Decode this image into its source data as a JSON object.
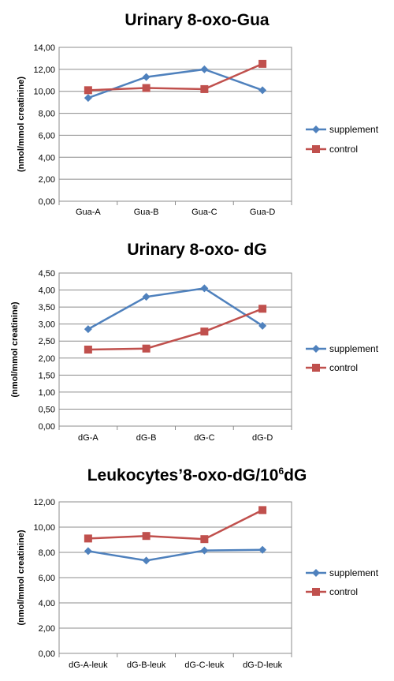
{
  "chart_data": [
    {
      "type": "line",
      "title": "Urinary 8-oxo-Gua",
      "ylabel": "(nmol/mmol creatinine)",
      "categories": [
        "Gua-A",
        "Gua-B",
        "Gua-C",
        "Gua-D"
      ],
      "ylim": [
        0,
        14
      ],
      "yticks": [
        "0,00",
        "2,00",
        "4,00",
        "6,00",
        "8,00",
        "10,00",
        "12,00",
        "14,00"
      ],
      "grid": true,
      "legend_position": "right",
      "series": [
        {
          "name": "supplement",
          "color": "#4f81bd",
          "marker": "diamond",
          "values": [
            9.4,
            11.3,
            12.0,
            10.1
          ]
        },
        {
          "name": "control",
          "color": "#c0504d",
          "marker": "square",
          "values": [
            10.1,
            10.3,
            10.2,
            12.5
          ]
        }
      ]
    },
    {
      "type": "line",
      "title": "Urinary 8-oxo- dG",
      "ylabel": "(nmol/mmol creatinine)",
      "categories": [
        "dG-A",
        "dG-B",
        "dG-C",
        "dG-D"
      ],
      "ylim": [
        0,
        4.5
      ],
      "yticks": [
        "0,00",
        "0,50",
        "1,00",
        "1,50",
        "2,00",
        "2,50",
        "3,00",
        "3,50",
        "4,00",
        "4,50"
      ],
      "grid": true,
      "legend_position": "right",
      "series": [
        {
          "name": "supplement",
          "color": "#4f81bd",
          "marker": "diamond",
          "values": [
            2.85,
            3.8,
            4.05,
            2.95
          ]
        },
        {
          "name": "control",
          "color": "#c0504d",
          "marker": "square",
          "values": [
            2.25,
            2.28,
            2.78,
            3.45
          ]
        }
      ]
    },
    {
      "type": "line",
      "title": "Leukocytes’8-oxo-dG/10",
      "title_sup": "6",
      "title_tail": "dG",
      "ylabel": "(nmol/mmol creatinine)",
      "categories": [
        "dG-A-leuk",
        "dG-B-leuk",
        "dG-C-leuk",
        "dG-D-leuk"
      ],
      "ylim": [
        0,
        12
      ],
      "yticks": [
        "0,00",
        "2,00",
        "4,00",
        "6,00",
        "8,00",
        "10,00",
        "12,00"
      ],
      "grid": true,
      "legend_position": "right",
      "series": [
        {
          "name": "supplement",
          "color": "#4f81bd",
          "marker": "diamond",
          "values": [
            8.1,
            7.35,
            8.15,
            8.2
          ]
        },
        {
          "name": "control",
          "color": "#c0504d",
          "marker": "square",
          "values": [
            9.1,
            9.3,
            9.05,
            11.35
          ]
        }
      ]
    }
  ]
}
